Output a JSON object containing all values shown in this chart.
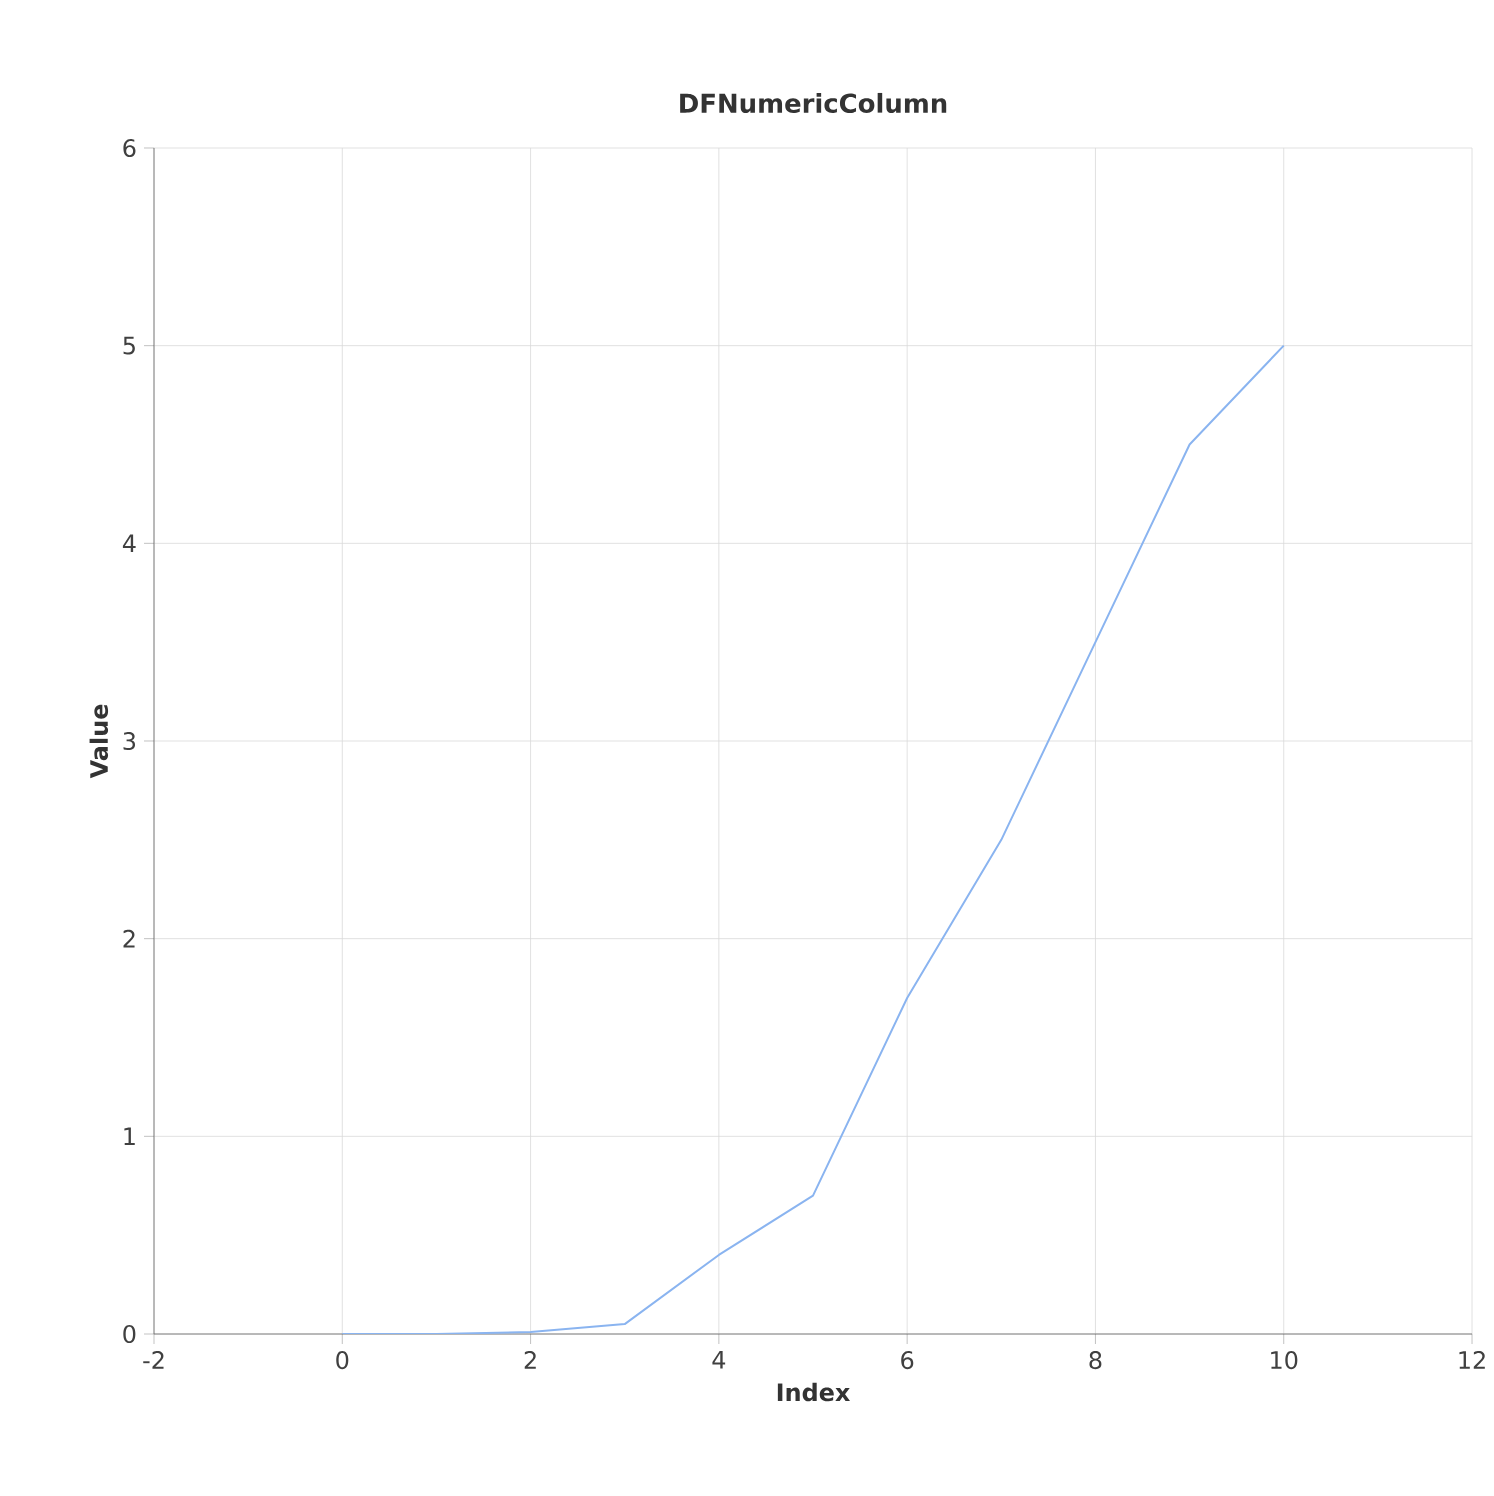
{
  "chart_data": {
    "type": "line",
    "title": "DFNumericColumn",
    "xlabel": "Index",
    "ylabel": "Value",
    "x": [
      0,
      1,
      2,
      3,
      4,
      5,
      6,
      7,
      8,
      9,
      10
    ],
    "series": [
      {
        "color": "#8ab4f0",
        "values": [
          0,
          0,
          0.01,
          0.05,
          0.4,
          0.7,
          1.7,
          2.5,
          3.5,
          4.5,
          5
        ]
      }
    ],
    "xlim": [
      -2,
      12
    ],
    "ylim": [
      0,
      6
    ],
    "xticks": [
      -2,
      0,
      2,
      4,
      6,
      8,
      10,
      12
    ],
    "yticks": [
      0,
      1,
      2,
      3,
      4,
      5,
      6
    ],
    "grid": true,
    "marker": "none",
    "line_style": "solid"
  }
}
